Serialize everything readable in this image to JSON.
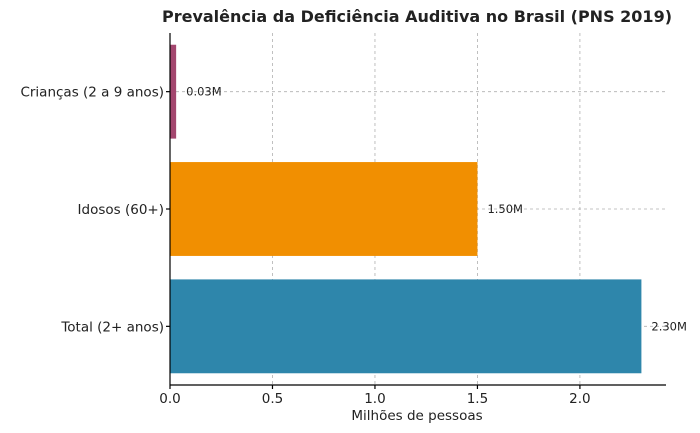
{
  "chart_data": {
    "type": "bar",
    "orientation": "horizontal",
    "title": "Prevalência da Deficiência Auditiva no Brasil (PNS 2019)",
    "xlabel": "Milhões de pessoas",
    "ylabel": "",
    "xlim": [
      0,
      2.42
    ],
    "xticks": [
      {
        "value": 0.0,
        "label": "0.0"
      },
      {
        "value": 0.5,
        "label": "0.5"
      },
      {
        "value": 1.0,
        "label": "1.0"
      },
      {
        "value": 1.5,
        "label": "1.5"
      },
      {
        "value": 2.0,
        "label": "2.0"
      }
    ],
    "grid": true,
    "bars": [
      {
        "category": "Crianças (2 a 9 anos)",
        "value": 0.03,
        "label": "0.03M",
        "color": "#a3466e"
      },
      {
        "category": "Idosos (60+)",
        "value": 1.5,
        "label": "1.50M",
        "color": "#f18f01"
      },
      {
        "category": "Total (2+ anos)",
        "value": 2.3,
        "label": "2.30M",
        "color": "#2e86ab"
      }
    ]
  }
}
